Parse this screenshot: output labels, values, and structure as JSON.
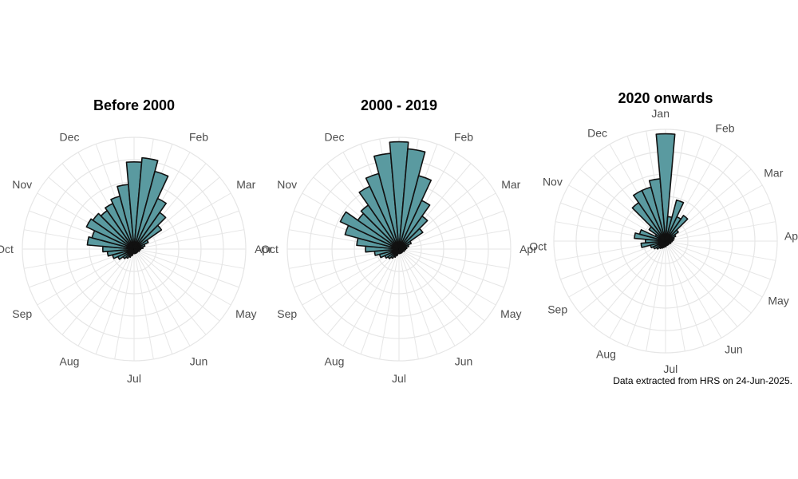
{
  "caption": "Data extracted from HRS on 24-Jun-2025.",
  "colors": {
    "bar_fill": "#5a9aa0",
    "bar_stroke": "#111111",
    "grid": "#e6e6e6",
    "label": "#4d4d4d"
  },
  "chart_data": [
    {
      "type": "bar",
      "coord": "polar",
      "title": "Before 2000",
      "month_labels": [
        "Jan",
        "Feb",
        "Mar",
        "Apr",
        "May",
        "Jun",
        "Jul",
        "Aug",
        "Sep",
        "Oct",
        "Nov",
        "Dec"
      ],
      "show_month_labels": [
        "Feb",
        "Mar",
        "Apr",
        "May",
        "Jun",
        "Jul",
        "Aug",
        "Sep",
        "Oct",
        "Nov",
        "Dec"
      ],
      "bins_per_month": 3,
      "values": [
        0.04,
        0.04,
        0.04,
        0.04,
        0.04,
        0.06,
        0.08,
        0.1,
        0.12,
        0.16,
        0.2,
        0.24,
        0.28,
        0.42,
        0.39,
        0.47,
        0.45,
        0.42,
        0.45,
        0.49,
        0.58,
        0.78,
        0.82,
        0.72,
        0.5,
        0.4,
        0.3,
        0.14,
        0.1,
        0.08,
        0.06,
        0.05,
        0.05,
        0.04,
        0.04,
        0.04
      ],
      "rlim": [
        0,
        1
      ]
    },
    {
      "type": "bar",
      "coord": "polar",
      "title": "2000 - 2019",
      "month_labels": [
        "Jan",
        "Feb",
        "Mar",
        "Apr",
        "May",
        "Jun",
        "Jul",
        "Aug",
        "Sep",
        "Oct",
        "Nov",
        "Dec"
      ],
      "show_month_labels": [
        "Feb",
        "Mar",
        "Apr",
        "May",
        "Jun",
        "Jul",
        "Aug",
        "Sep",
        "Oct",
        "Nov",
        "Dec"
      ],
      "bins_per_month": 3,
      "values": [
        0.04,
        0.04,
        0.04,
        0.04,
        0.04,
        0.06,
        0.08,
        0.1,
        0.12,
        0.14,
        0.18,
        0.22,
        0.3,
        0.38,
        0.5,
        0.58,
        0.45,
        0.48,
        0.62,
        0.7,
        0.86,
        0.96,
        0.9,
        0.68,
        0.48,
        0.36,
        0.26,
        0.12,
        0.09,
        0.07,
        0.06,
        0.05,
        0.05,
        0.04,
        0.04,
        0.04
      ],
      "rlim": [
        0,
        1
      ]
    },
    {
      "type": "bar",
      "coord": "polar",
      "title": "2020 onwards",
      "month_labels": [
        "Jan",
        "Feb",
        "Mar",
        "Apr",
        "May",
        "Jun",
        "Jul",
        "Aug",
        "Sep",
        "Oct",
        "Nov",
        "Dec"
      ],
      "show_month_labels": [
        "Dec",
        "Feb",
        "Mar",
        "Apr",
        "May",
        "Jun",
        "Jul",
        "Aug",
        "Sep",
        "Oct",
        "Nov",
        "Jan"
      ],
      "bins_per_month": 3,
      "values": [
        0.04,
        0.04,
        0.04,
        0.05,
        0.05,
        0.06,
        0.07,
        0.08,
        0.1,
        0.12,
        0.14,
        0.22,
        0.18,
        0.28,
        0.24,
        0.1,
        0.18,
        0.42,
        0.5,
        0.5,
        0.56,
        0.96,
        0.22,
        0.38,
        0.24,
        0.28,
        0.14,
        0.1,
        0.08,
        0.07,
        0.06,
        0.05,
        0.05,
        0.04,
        0.04,
        0.04
      ],
      "rlim": [
        0,
        1
      ]
    }
  ]
}
